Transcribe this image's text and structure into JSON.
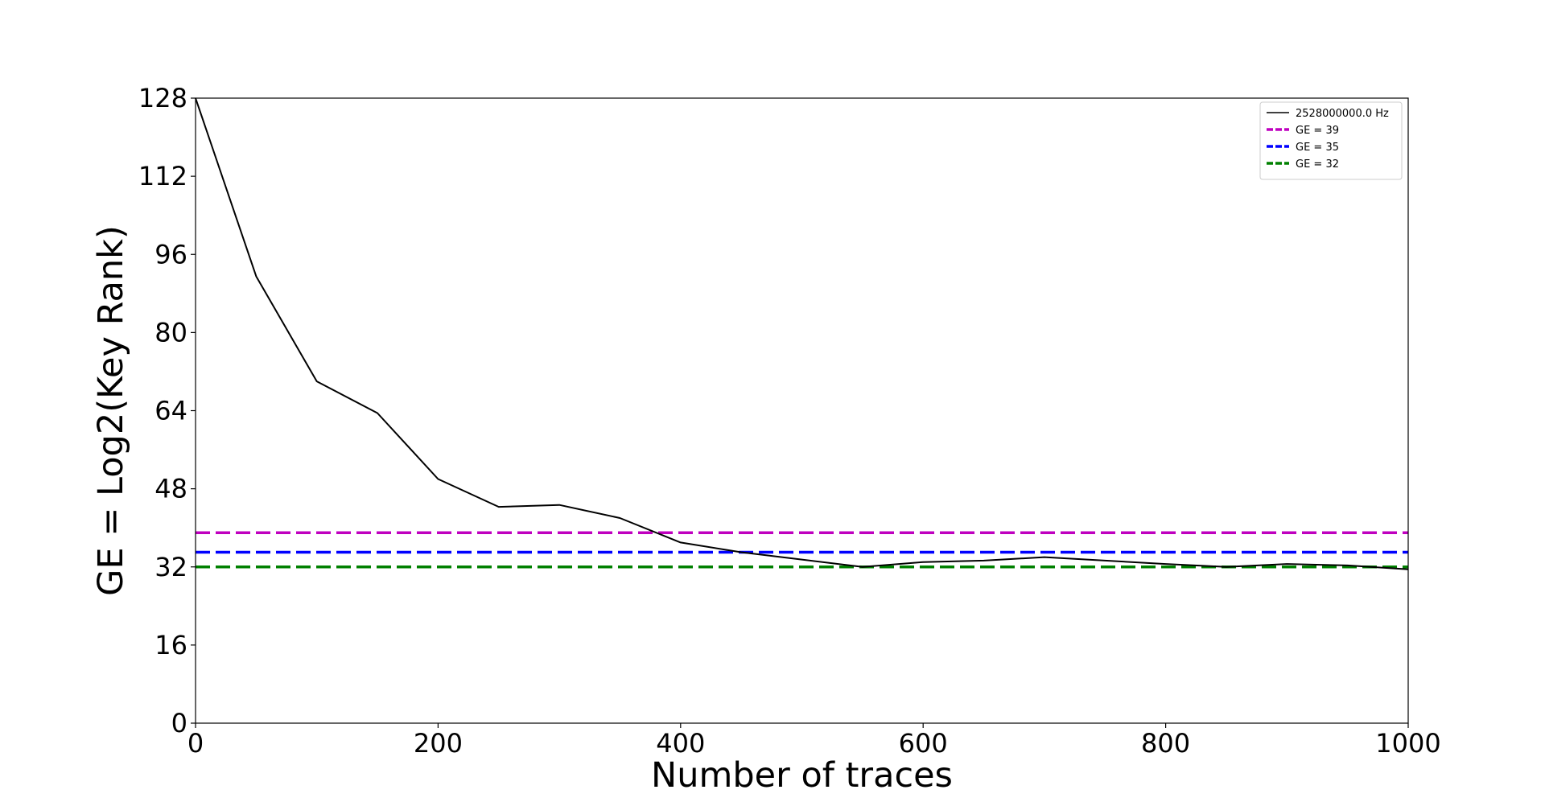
{
  "chart_data": {
    "type": "line",
    "title": "",
    "xlabel": "Number of traces",
    "ylabel": "GE = Log2(Key Rank)",
    "xlim": [
      0,
      1000
    ],
    "ylim": [
      0,
      128
    ],
    "xticks": [
      0,
      200,
      400,
      600,
      800,
      1000
    ],
    "xtick_labels": [
      "0",
      "200",
      "400",
      "600",
      "800",
      "1000"
    ],
    "yticks": [
      0,
      16,
      32,
      48,
      64,
      80,
      96,
      112,
      128
    ],
    "ytick_labels": [
      "0",
      "16",
      "32",
      "48",
      "64",
      "80",
      "96",
      "112",
      "128"
    ],
    "grid": false,
    "legend_position": "top-right",
    "series": [
      {
        "name": "2528000000.0 Hz",
        "color": "#000000",
        "style": "solid",
        "x": [
          0,
          50,
          100,
          150,
          200,
          250,
          300,
          350,
          400,
          450,
          500,
          550,
          600,
          650,
          700,
          750,
          800,
          850,
          900,
          950,
          1000
        ],
        "y": [
          128,
          91.5,
          70,
          63.5,
          50,
          44.3,
          44.7,
          42,
          37,
          35,
          33.5,
          32,
          33,
          33.3,
          34,
          33.3,
          32.6,
          32,
          32.6,
          32.3,
          31.5
        ]
      }
    ],
    "reference_lines": [
      {
        "name": "GE = 39",
        "value": 39,
        "color": "#bf00bf",
        "style": "dashed"
      },
      {
        "name": "GE = 35",
        "value": 35,
        "color": "#0000ff",
        "style": "dashed"
      },
      {
        "name": "GE = 32",
        "value": 32,
        "color": "#008000",
        "style": "dashed"
      }
    ]
  }
}
